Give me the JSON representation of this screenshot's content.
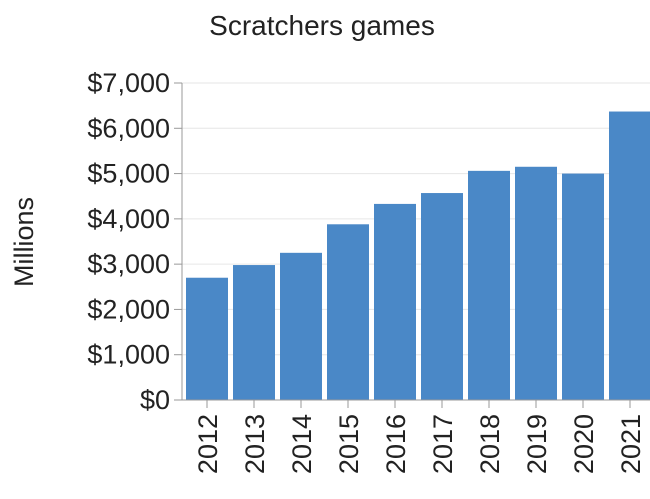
{
  "chart_data": {
    "type": "bar",
    "title": "Scratchers games",
    "ylabel": "Millions",
    "xlabel": "",
    "categories": [
      "2012",
      "2013",
      "2014",
      "2015",
      "2016",
      "2017",
      "2018",
      "2019",
      "2020",
      "2021"
    ],
    "values": [
      2700,
      2980,
      3250,
      3880,
      4330,
      4570,
      5060,
      5150,
      5000,
      6370
    ],
    "ylim": [
      0,
      7000
    ],
    "yticks": [
      0,
      1000,
      2000,
      3000,
      4000,
      5000,
      6000,
      7000
    ],
    "ytick_labels": [
      "$0",
      "$1,000",
      "$2,000",
      "$3,000",
      "$4,000",
      "$5,000",
      "$6,000",
      "$7,000"
    ],
    "grid": true,
    "bar_color": "#4a88c7"
  }
}
